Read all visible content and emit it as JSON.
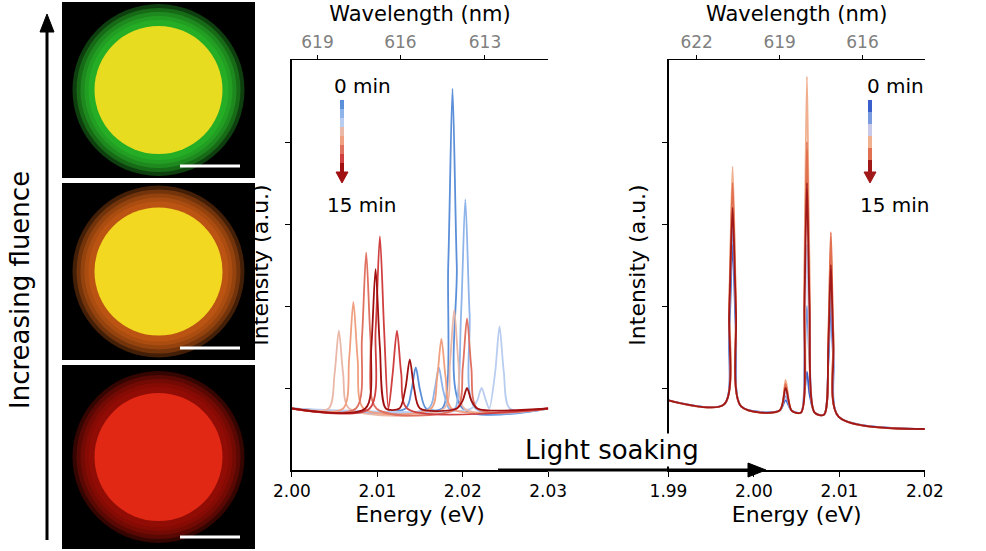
{
  "images_panel": {
    "label": "Increasing fluence",
    "images": [
      {
        "colors": [
          "#e8dc20",
          "#30d030"
        ]
      },
      {
        "colors": [
          "#f2d820",
          "#e06818"
        ]
      },
      {
        "colors": [
          "#e02814",
          "#b01008"
        ]
      }
    ]
  },
  "arrow_label": "Light soaking",
  "chart_data": [
    {
      "type": "line",
      "xlabel": "Energy (eV)",
      "ylabel": "Intensity (a.u.)",
      "x2label": "Wavelength (nm)",
      "xlim": [
        2.0,
        2.03
      ],
      "xticks": [
        {
          "value": 2.0,
          "label": "2.00"
        },
        2.01,
        2.02,
        2.03
      ],
      "x2ticks": [
        {
          "value": 2.003,
          "label": "619"
        },
        {
          "value": 2.0127,
          "label": "616"
        },
        {
          "value": 2.0226,
          "label": "613"
        }
      ],
      "ylim": [
        0,
        1
      ],
      "yticks": [
        0.2,
        0.4,
        0.6,
        0.8
      ],
      "tick_labels": "x",
      "grid": false,
      "annotations": [
        "0 min",
        "15 min"
      ],
      "series": [
        {
          "color": "#5b8fd9",
          "x": [
            2.0,
            2.0133,
            2.014,
            2.0145,
            2.015,
            2.0157,
            2.0176,
            2.0183,
            2.0188,
            2.0193,
            2.02,
            2.03
          ],
          "values": [
            0.15,
            0.15,
            0.195,
            0.25,
            0.195,
            0.15,
            0.15,
            0.5,
            0.93,
            0.5,
            0.15,
            0.15
          ]
        },
        {
          "color": "#8fb4ea",
          "x": [
            2.0,
            2.016,
            2.0167,
            2.0172,
            2.0177,
            2.0184,
            2.0191,
            2.0198,
            2.0203,
            2.0208,
            2.0215,
            2.03
          ],
          "values": [
            0.15,
            0.15,
            0.195,
            0.25,
            0.195,
            0.15,
            0.15,
            0.38,
            0.66,
            0.38,
            0.15,
            0.15
          ]
        },
        {
          "color": "#b9cdf0",
          "x": [
            2.0,
            2.021,
            2.0217,
            2.0222,
            2.0227,
            2.0231,
            2.0238,
            2.0243,
            2.0248,
            2.0255,
            2.03
          ],
          "values": [
            0.15,
            0.15,
            0.17,
            0.2,
            0.17,
            0.15,
            0.24,
            0.35,
            0.24,
            0.15,
            0.15
          ]
        },
        {
          "color": "#eab8a8",
          "x": [
            2.0,
            2.0043,
            2.005,
            2.0055,
            2.006,
            2.0067,
            2.0178,
            2.0185,
            2.019,
            2.0195,
            2.0202,
            2.03
          ],
          "values": [
            0.15,
            0.15,
            0.235,
            0.34,
            0.235,
            0.15,
            0.15,
            0.26,
            0.39,
            0.26,
            0.15,
            0.15
          ]
        },
        {
          "color": "#f0a080",
          "x": [
            2.0,
            2.006,
            2.0067,
            2.0072,
            2.0077,
            2.0084,
            2.0163,
            2.017,
            2.0175,
            2.018,
            2.0187,
            2.03
          ],
          "values": [
            0.15,
            0.15,
            0.27,
            0.41,
            0.27,
            0.15,
            0.15,
            0.225,
            0.32,
            0.225,
            0.15,
            0.15
          ]
        },
        {
          "color": "#e07060",
          "x": [
            2.0,
            2.0075,
            2.0082,
            2.0087,
            2.0092,
            2.0099,
            2.0193,
            2.02,
            2.0205,
            2.021,
            2.0217,
            2.03
          ],
          "values": [
            0.15,
            0.15,
            0.32,
            0.53,
            0.32,
            0.15,
            0.15,
            0.25,
            0.37,
            0.25,
            0.15,
            0.15
          ]
        },
        {
          "color": "#d04040",
          "x": [
            2.0,
            2.0091,
            2.0098,
            2.0103,
            2.0108,
            2.0113,
            2.0118,
            2.0123,
            2.0128,
            2.0135,
            2.03
          ],
          "values": [
            0.15,
            0.15,
            0.34,
            0.57,
            0.34,
            0.15,
            0.235,
            0.34,
            0.235,
            0.15,
            0.15
          ]
        },
        {
          "color": "#a01010",
          "x": [
            2.0,
            2.0086,
            2.0093,
            2.0098,
            2.0103,
            2.011,
            2.0126,
            2.0133,
            2.0138,
            2.0143,
            2.015,
            2.0193,
            2.02,
            2.0205,
            2.021,
            2.0217,
            2.03
          ],
          "values": [
            0.15,
            0.15,
            0.3,
            0.49,
            0.3,
            0.15,
            0.15,
            0.2,
            0.27,
            0.2,
            0.15,
            0.15,
            0.17,
            0.2,
            0.17,
            0.15,
            0.15
          ]
        }
      ]
    },
    {
      "type": "line",
      "xlabel": "Energy (eV)",
      "ylabel": "Intensity (a.u.)",
      "x2label": "Wavelength (nm)",
      "xlim": [
        1.99,
        2.02
      ],
      "xticks": [
        1.99,
        {
          "value": 2.0,
          "label": "2.00"
        },
        2.01,
        2.02
      ],
      "x2ticks": [
        {
          "value": 1.9933,
          "label": "622"
        },
        {
          "value": 2.003,
          "label": "619"
        },
        {
          "value": 2.0127,
          "label": "616"
        }
      ],
      "ylim": [
        0,
        1
      ],
      "yticks": [
        0.2,
        0.4,
        0.6,
        0.8
      ],
      "tick_labels": "x",
      "grid": false,
      "annotations": [
        "0 min",
        "15 min"
      ],
      "x": [
        1.99,
        1.9965,
        1.9971,
        1.9975,
        1.9979,
        1.9985,
        2.003,
        2.0037,
        2.0044,
        2.0055,
        2.0059,
        2.0062,
        2.0065,
        2.0071,
        2.0082,
        2.0087,
        2.009,
        2.0093,
        2.0099,
        2.02
      ],
      "series": [
        {
          "color": "#3a5fcd",
          "values": [
            0.17,
            0.16,
            0.33,
            0.55,
            0.33,
            0.155,
            0.145,
            0.17,
            0.145,
            0.14,
            0.185,
            0.24,
            0.185,
            0.14,
            0.135,
            0.26,
            0.41,
            0.26,
            0.13,
            0.1
          ]
        },
        {
          "color": "#7a9ae0",
          "values": [
            0.17,
            0.16,
            0.36,
            0.6,
            0.36,
            0.155,
            0.145,
            0.18,
            0.145,
            0.14,
            0.26,
            0.4,
            0.26,
            0.14,
            0.135,
            0.28,
            0.45,
            0.28,
            0.13,
            0.1
          ]
        },
        {
          "color": "#c8c8e8",
          "values": [
            0.17,
            0.16,
            0.38,
            0.65,
            0.38,
            0.155,
            0.145,
            0.19,
            0.145,
            0.14,
            0.32,
            0.55,
            0.32,
            0.14,
            0.135,
            0.3,
            0.5,
            0.3,
            0.13,
            0.1
          ]
        },
        {
          "color": "#f0b090",
          "values": [
            0.17,
            0.16,
            0.42,
            0.74,
            0.42,
            0.155,
            0.145,
            0.22,
            0.145,
            0.14,
            0.51,
            0.96,
            0.51,
            0.14,
            0.135,
            0.32,
            0.55,
            0.32,
            0.13,
            0.1
          ]
        },
        {
          "color": "#e07050",
          "values": [
            0.17,
            0.16,
            0.4,
            0.7,
            0.4,
            0.155,
            0.145,
            0.21,
            0.145,
            0.14,
            0.44,
            0.8,
            0.44,
            0.14,
            0.135,
            0.33,
            0.58,
            0.33,
            0.13,
            0.1
          ]
        },
        {
          "color": "#a01818",
          "values": [
            0.17,
            0.16,
            0.38,
            0.64,
            0.38,
            0.155,
            0.145,
            0.2,
            0.145,
            0.14,
            0.4,
            0.7,
            0.4,
            0.14,
            0.135,
            0.3,
            0.5,
            0.3,
            0.13,
            0.1
          ]
        }
      ]
    }
  ]
}
